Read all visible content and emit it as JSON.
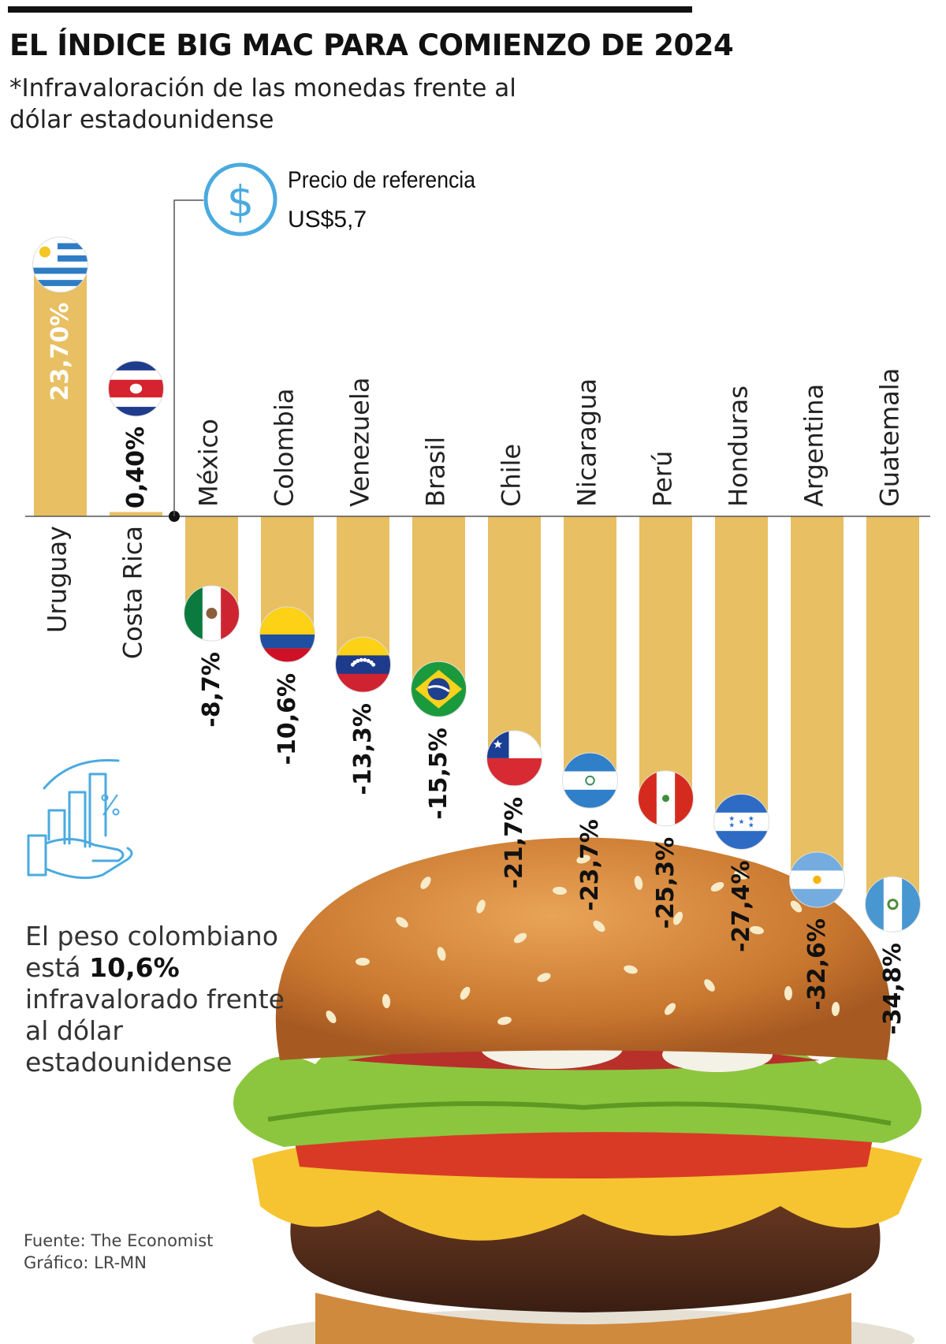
{
  "title": "EL ÍNDICE BIG MAC PARA COMIENZO DE 2024",
  "subtitle": "*Infravaloración de las monedas frente al dólar estadounidense",
  "reference": {
    "label_line1": "Precio de referencia",
    "label_line2": "US$5,7",
    "icon": "dollar-icon"
  },
  "note": {
    "pre": "El peso colombiano está ",
    "highlight": "10,6%",
    "post": " infravalorado frente al dólar estadounidense"
  },
  "credits": {
    "source": "Fuente: The Economist",
    "graphic": "Gráfico: LR-MN"
  },
  "colors": {
    "bar": "#E8BF62",
    "accent": "#4AAAE0",
    "text": "#111111"
  },
  "chart_data": {
    "type": "bar",
    "categories": [
      "Uruguay",
      "Costa Rica",
      "México",
      "Colombia",
      "Venezuela",
      "Brasil",
      "Chile",
      "Nicaragua",
      "Perú",
      "Honduras",
      "Argentina",
      "Guatemala"
    ],
    "values": [
      23.7,
      0.4,
      -8.7,
      -10.6,
      -13.3,
      -15.5,
      -21.7,
      -23.7,
      -25.3,
      -27.4,
      -32.6,
      -34.8
    ],
    "value_labels": [
      "23,70%",
      "0,40%",
      "-8,7%",
      "-10,6%",
      "-13,3%",
      "-15,5%",
      "-21,7%",
      "-23,7%",
      "-25,3%",
      "-27,4%",
      "-32,6%",
      "-34,8%"
    ],
    "flags": [
      "uruguay-flag",
      "costa-rica-flag",
      "mexico-flag",
      "colombia-flag",
      "venezuela-flag",
      "brazil-flag",
      "chile-flag",
      "nicaragua-flag",
      "peru-flag",
      "honduras-flag",
      "argentina-flag",
      "guatemala-flag"
    ],
    "ylim": [
      -35,
      25
    ],
    "grid": false,
    "legend": "none"
  }
}
